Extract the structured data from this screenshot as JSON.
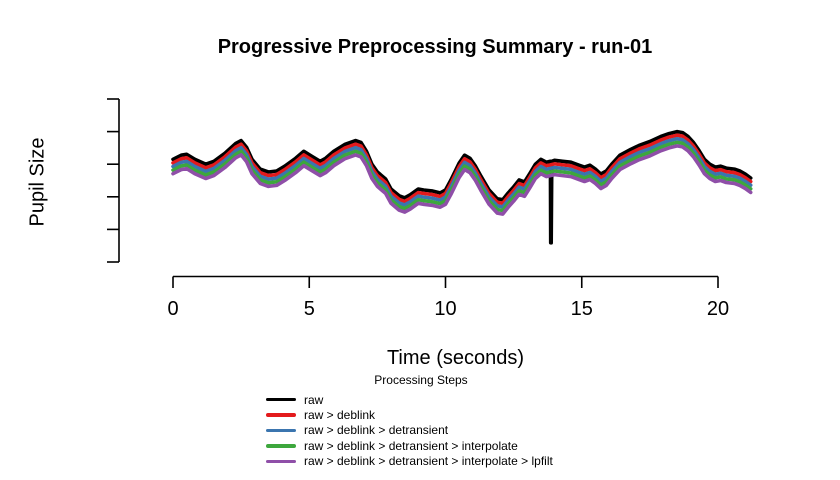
{
  "title": "Progressive Preprocessing Summary - run-01",
  "axes": {
    "x_label": "Time (seconds)",
    "y_label": "Pupil Size"
  },
  "legend": {
    "title": "Processing Steps",
    "items": [
      {
        "label": "raw",
        "color": "#000000"
      },
      {
        "label": "raw > deblink",
        "color": "#e31a1c"
      },
      {
        "label": "raw > deblink > detransient",
        "color": "#3b75af"
      },
      {
        "label": "raw > deblink > detransient > interpolate",
        "color": "#3da73d"
      },
      {
        "label": "raw > deblink > detransient > interpolate > lpfilt",
        "color": "#8f4fa8"
      }
    ]
  },
  "chart_data": {
    "type": "line",
    "title": "Progressive Preprocessing Summary - run-01",
    "xlabel": "Time (seconds)",
    "ylabel": "Pupil Size",
    "xlim": [
      0,
      21.3
    ],
    "xticks": [
      0,
      5,
      10,
      15,
      20
    ],
    "ytick_labels": [],
    "yticks_normalized": [
      0,
      0.2,
      0.4,
      0.6,
      0.8,
      1.0
    ],
    "grid": false,
    "legend_position": "bottom",
    "note": "y axis ticks are unlabeled; values below are normalized 0-1 between bottom and top y ticks; the five series are the same trace drawn with small vertical offsets; raw has a downward blink spike near t=13.9",
    "x": [
      0.0,
      0.3,
      0.5,
      0.8,
      1.2,
      1.5,
      1.9,
      2.3,
      2.5,
      2.7,
      2.9,
      3.2,
      3.5,
      3.8,
      4.1,
      4.5,
      4.8,
      5.1,
      5.4,
      5.6,
      5.9,
      6.3,
      6.7,
      6.9,
      7.1,
      7.3,
      7.5,
      7.8,
      8.0,
      8.3,
      8.5,
      8.7,
      9.0,
      9.2,
      9.5,
      9.8,
      10.0,
      10.2,
      10.5,
      10.7,
      10.9,
      11.1,
      11.3,
      11.6,
      11.9,
      12.1,
      12.3,
      12.5,
      12.7,
      12.9,
      13.1,
      13.3,
      13.5,
      13.7,
      13.85,
      14.0,
      14.3,
      14.6,
      14.9,
      15.1,
      15.3,
      15.5,
      15.7,
      15.9,
      16.1,
      16.4,
      16.8,
      17.1,
      17.5,
      17.9,
      18.2,
      18.5,
      18.7,
      18.9,
      19.1,
      19.3,
      19.5,
      19.7,
      19.9,
      20.1,
      20.3,
      20.6,
      20.8,
      21.0,
      21.2
    ],
    "base_values_normalized": [
      0.63,
      0.655,
      0.661,
      0.63,
      0.6,
      0.618,
      0.667,
      0.727,
      0.745,
      0.703,
      0.63,
      0.57,
      0.552,
      0.558,
      0.588,
      0.636,
      0.679,
      0.648,
      0.618,
      0.636,
      0.679,
      0.721,
      0.745,
      0.733,
      0.679,
      0.6,
      0.552,
      0.509,
      0.448,
      0.406,
      0.394,
      0.412,
      0.448,
      0.442,
      0.436,
      0.424,
      0.442,
      0.503,
      0.606,
      0.655,
      0.636,
      0.588,
      0.527,
      0.442,
      0.388,
      0.382,
      0.424,
      0.461,
      0.503,
      0.491,
      0.545,
      0.6,
      0.63,
      0.612,
      0.618,
      0.624,
      0.618,
      0.612,
      0.594,
      0.582,
      0.594,
      0.57,
      0.539,
      0.558,
      0.6,
      0.655,
      0.691,
      0.715,
      0.739,
      0.77,
      0.788,
      0.8,
      0.794,
      0.77,
      0.733,
      0.685,
      0.63,
      0.6,
      0.582,
      0.588,
      0.576,
      0.57,
      0.558,
      0.539,
      0.515
    ],
    "series": [
      {
        "name": "raw",
        "color": "#000000",
        "offset": 0,
        "has_blink_spike": true
      },
      {
        "name": "raw > deblink",
        "color": "#e31a1c",
        "offset": -0.022
      },
      {
        "name": "raw > deblink > detransient",
        "color": "#3b75af",
        "offset": -0.044
      },
      {
        "name": "raw > deblink > detransient > interpolate",
        "color": "#3da73d",
        "offset": -0.066
      },
      {
        "name": "raw > deblink > detransient > interpolate > lpfilt",
        "color": "#8f4fa8",
        "offset": -0.088
      }
    ],
    "blink_spike": {
      "t": 13.86,
      "v_bottom": 0.118
    }
  }
}
